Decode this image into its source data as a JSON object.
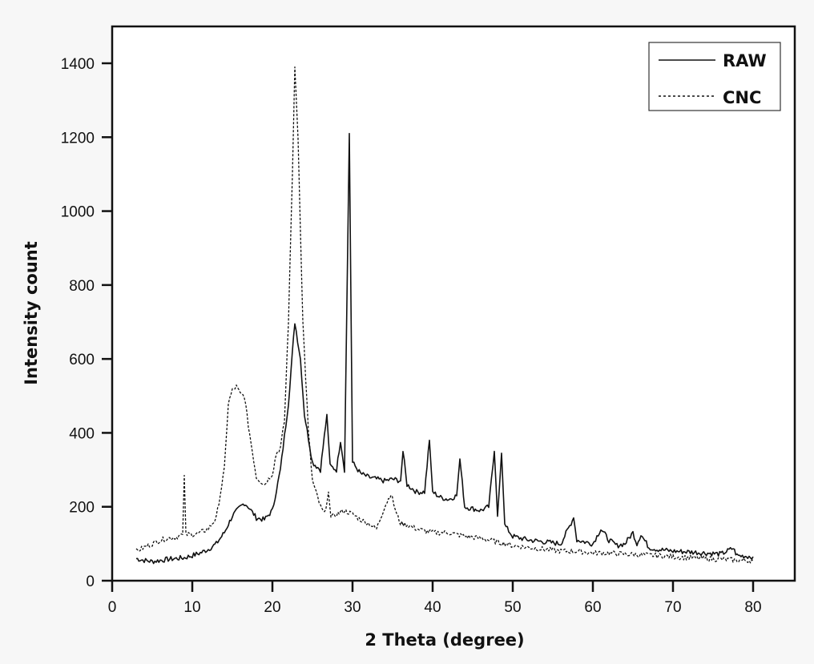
{
  "chart_data": {
    "type": "line",
    "title": "",
    "xlabel": "2 Theta (degree)",
    "ylabel": "Intensity count",
    "xlim": [
      0,
      85
    ],
    "ylim": [
      0,
      1500
    ],
    "xticks": [
      0,
      10,
      20,
      30,
      40,
      50,
      60,
      70,
      80
    ],
    "yticks": [
      0,
      200,
      400,
      600,
      800,
      1000,
      1200,
      1400
    ],
    "grid": false,
    "legend_position": "upper right",
    "series": [
      {
        "name": "RAW",
        "style": "solid",
        "color": "#111111",
        "points": [
          [
            3,
            60
          ],
          [
            4,
            55
          ],
          [
            5,
            52
          ],
          [
            6,
            55
          ],
          [
            7,
            58
          ],
          [
            8,
            60
          ],
          [
            9,
            62
          ],
          [
            10,
            68
          ],
          [
            11,
            75
          ],
          [
            12,
            85
          ],
          [
            13,
            100
          ],
          [
            14,
            130
          ],
          [
            15,
            175
          ],
          [
            16,
            200
          ],
          [
            16.5,
            210
          ],
          [
            17,
            200
          ],
          [
            18,
            170
          ],
          [
            19,
            165
          ],
          [
            20,
            190
          ],
          [
            21,
            300
          ],
          [
            22,
            480
          ],
          [
            22.8,
            700
          ],
          [
            23.5,
            600
          ],
          [
            24,
            450
          ],
          [
            25,
            320
          ],
          [
            26,
            300
          ],
          [
            26.8,
            450
          ],
          [
            27.2,
            310
          ],
          [
            28,
            300
          ],
          [
            28.5,
            380
          ],
          [
            29,
            300
          ],
          [
            29.6,
            1210
          ],
          [
            30,
            320
          ],
          [
            31,
            290
          ],
          [
            32,
            280
          ],
          [
            33,
            275
          ],
          [
            34,
            270
          ],
          [
            35,
            275
          ],
          [
            36,
            270
          ],
          [
            36.3,
            350
          ],
          [
            36.8,
            260
          ],
          [
            38,
            240
          ],
          [
            39,
            240
          ],
          [
            39.6,
            380
          ],
          [
            40,
            240
          ],
          [
            41,
            225
          ],
          [
            42,
            220
          ],
          [
            43,
            230
          ],
          [
            43.4,
            330
          ],
          [
            44,
            200
          ],
          [
            45,
            195
          ],
          [
            46,
            190
          ],
          [
            47,
            200
          ],
          [
            47.7,
            350
          ],
          [
            48.1,
            180
          ],
          [
            48.6,
            345
          ],
          [
            49,
            150
          ],
          [
            50,
            120
          ],
          [
            52,
            110
          ],
          [
            54,
            105
          ],
          [
            56,
            100
          ],
          [
            57.6,
            170
          ],
          [
            58,
            110
          ],
          [
            60,
            100
          ],
          [
            61,
            140
          ],
          [
            62,
            110
          ],
          [
            63,
            95
          ],
          [
            64,
            100
          ],
          [
            65,
            130
          ],
          [
            65.5,
            100
          ],
          [
            66,
            125
          ],
          [
            67,
            90
          ],
          [
            68,
            85
          ],
          [
            70,
            80
          ],
          [
            72,
            78
          ],
          [
            74,
            75
          ],
          [
            76,
            72
          ],
          [
            77.5,
            88
          ],
          [
            78,
            68
          ],
          [
            80,
            65
          ]
        ]
      },
      {
        "name": "CNC",
        "style": "dashed",
        "color": "#111111",
        "points": [
          [
            3,
            80
          ],
          [
            4,
            90
          ],
          [
            5,
            100
          ],
          [
            6,
            110
          ],
          [
            7,
            115
          ],
          [
            8,
            118
          ],
          [
            8.8,
            125
          ],
          [
            9,
            285
          ],
          [
            9.2,
            125
          ],
          [
            10,
            125
          ],
          [
            11,
            130
          ],
          [
            12,
            140
          ],
          [
            13,
            170
          ],
          [
            14,
            300
          ],
          [
            14.5,
            480
          ],
          [
            15,
            515
          ],
          [
            15.5,
            525
          ],
          [
            16,
            505
          ],
          [
            16.5,
            500
          ],
          [
            17,
            420
          ],
          [
            18,
            280
          ],
          [
            19,
            260
          ],
          [
            20,
            290
          ],
          [
            20.5,
            345
          ],
          [
            21,
            360
          ],
          [
            21.5,
            430
          ],
          [
            22,
            700
          ],
          [
            22.5,
            1100
          ],
          [
            22.8,
            1390
          ],
          [
            23.2,
            1200
          ],
          [
            23.8,
            700
          ],
          [
            24.5,
            400
          ],
          [
            25,
            270
          ],
          [
            26,
            200
          ],
          [
            26.5,
            180
          ],
          [
            27,
            240
          ],
          [
            27.3,
            170
          ],
          [
            28,
            180
          ],
          [
            29,
            190
          ],
          [
            30,
            180
          ],
          [
            31,
            165
          ],
          [
            32,
            155
          ],
          [
            33,
            140
          ],
          [
            34,
            200
          ],
          [
            34.8,
            235
          ],
          [
            35.5,
            180
          ],
          [
            36,
            155
          ],
          [
            37,
            150
          ],
          [
            38,
            140
          ],
          [
            39,
            135
          ],
          [
            40,
            130
          ],
          [
            42,
            130
          ],
          [
            44,
            120
          ],
          [
            46,
            115
          ],
          [
            48,
            105
          ],
          [
            50,
            95
          ],
          [
            52,
            90
          ],
          [
            54,
            85
          ],
          [
            56,
            80
          ],
          [
            58,
            80
          ],
          [
            60,
            75
          ],
          [
            62,
            75
          ],
          [
            64,
            72
          ],
          [
            66,
            70
          ],
          [
            68,
            68
          ],
          [
            70,
            65
          ],
          [
            72,
            62
          ],
          [
            74,
            60
          ],
          [
            76,
            58
          ],
          [
            78,
            55
          ],
          [
            80,
            55
          ]
        ]
      }
    ],
    "annotations": []
  },
  "legend": {
    "items": [
      {
        "label": "RAW",
        "style": "solid"
      },
      {
        "label": "CNC",
        "style": "dashed"
      }
    ]
  },
  "axes": {
    "x_title": "2 Theta (degree)",
    "y_title": "Intensity count",
    "x_tick_labels": [
      "0",
      "10",
      "20",
      "30",
      "40",
      "50",
      "60",
      "70",
      "80"
    ],
    "y_tick_labels": [
      "0",
      "200",
      "400",
      "600",
      "800",
      "1000",
      "1200",
      "1400"
    ]
  }
}
